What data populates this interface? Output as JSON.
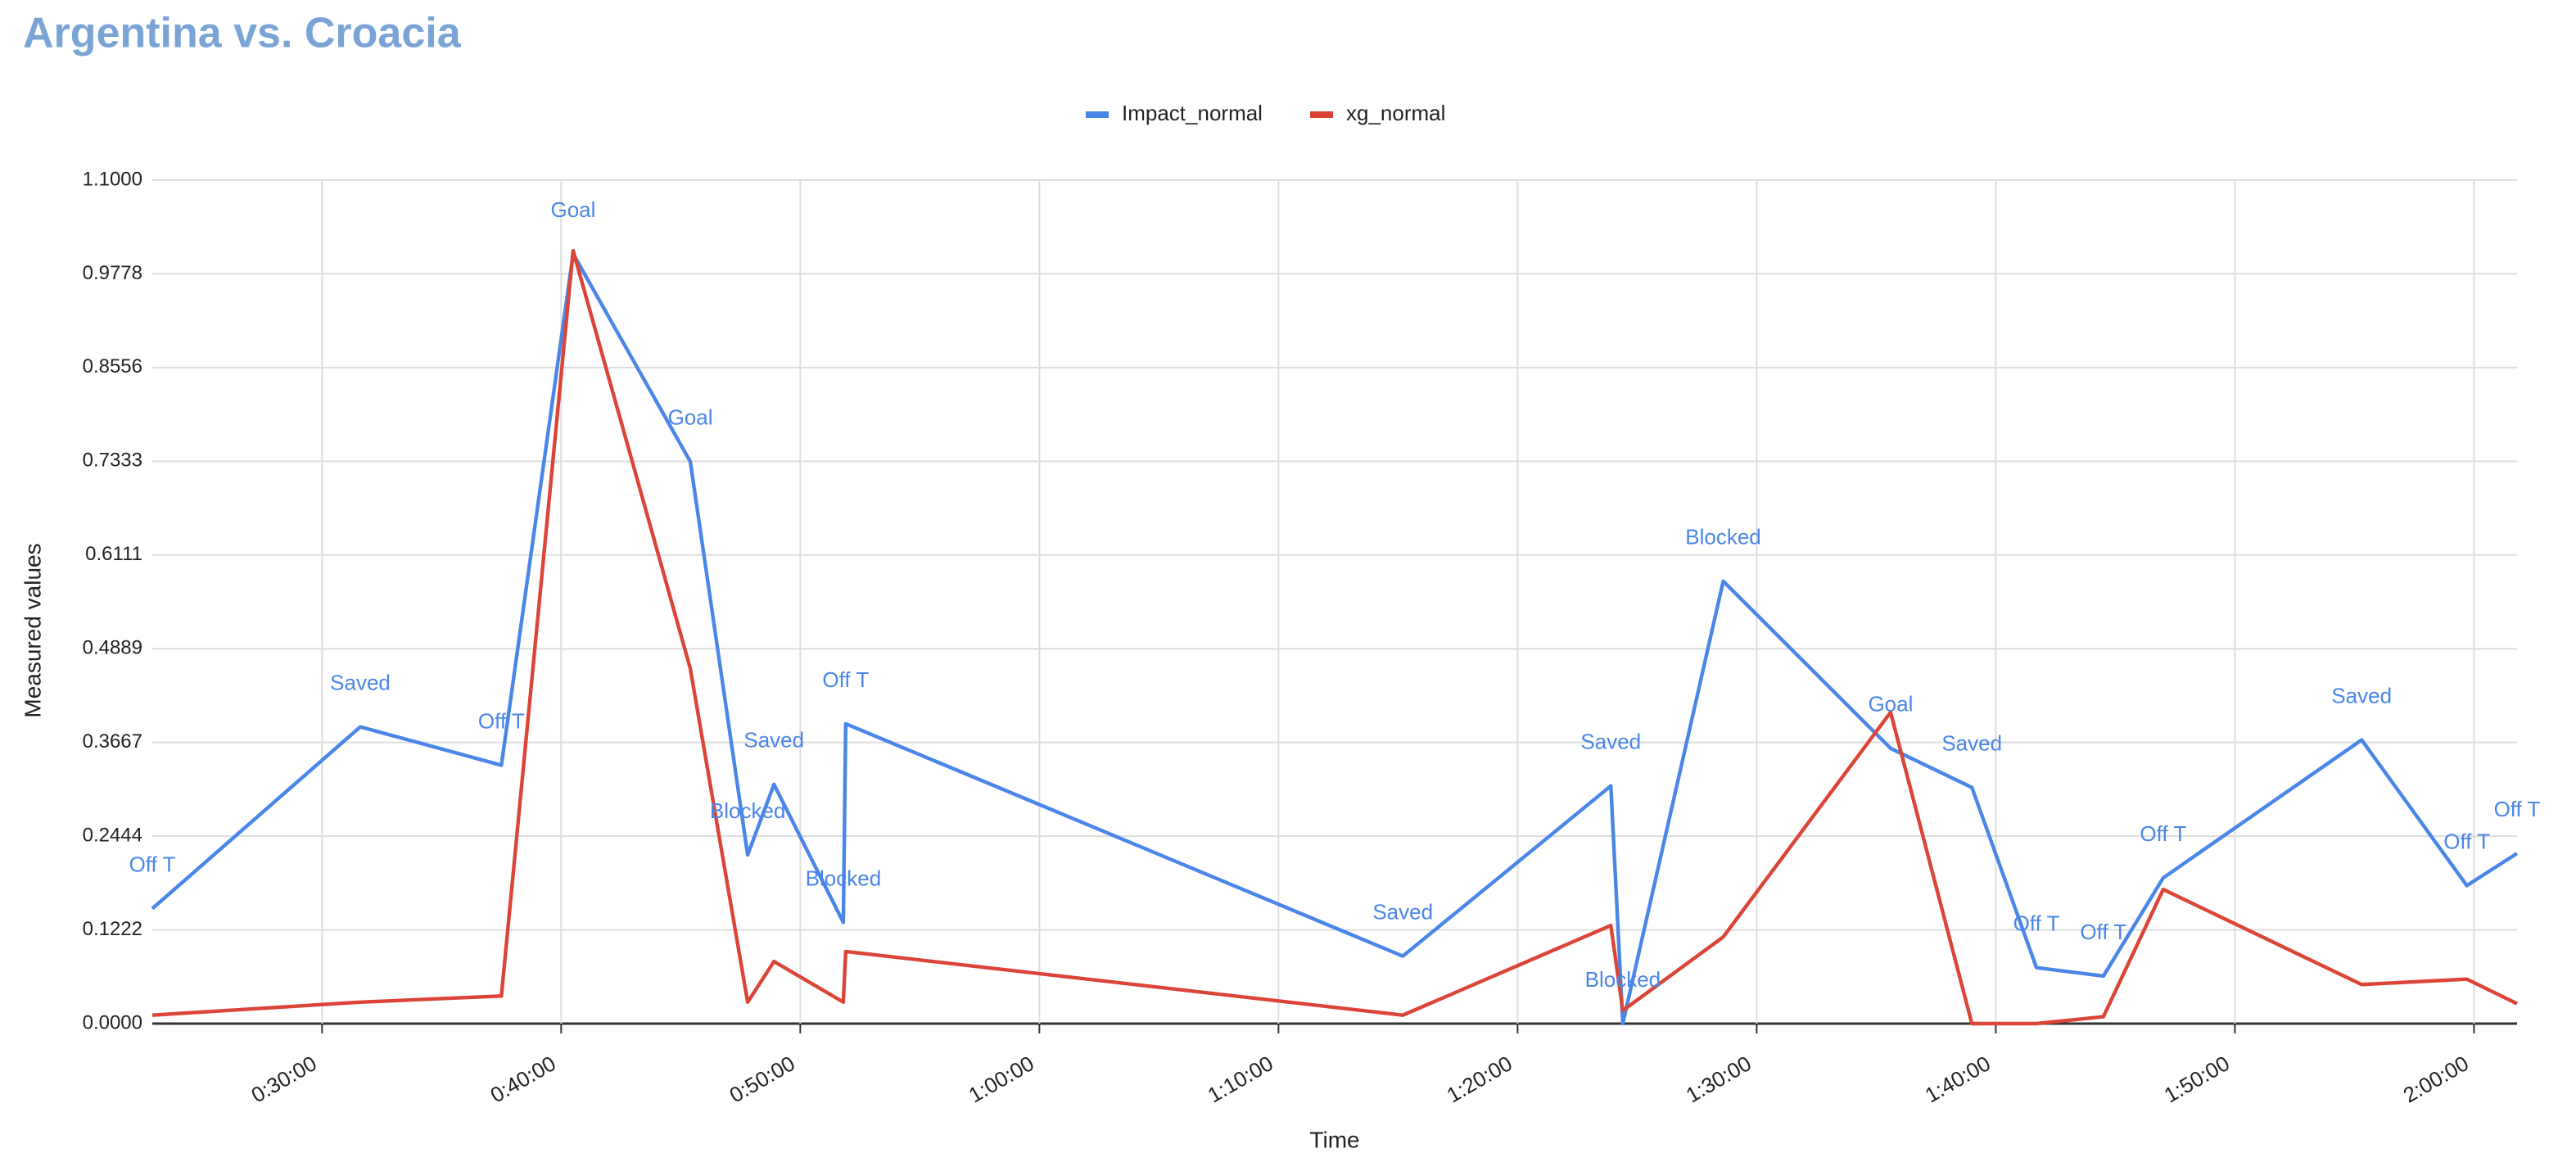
{
  "chart_data": {
    "type": "line",
    "title": "Argentina vs. Croacia",
    "x_label": "Time",
    "y_label": "Measured values",
    "x": [
      22.9,
      31.6,
      37.5,
      40.5,
      45.4,
      47.8,
      48.9,
      51.8,
      51.9,
      75.2,
      83.9,
      84.4,
      88.6,
      95.6,
      99.0,
      101.7,
      104.5,
      107.0,
      115.3,
      119.7,
      121.8
    ],
    "annotations": [
      "Off T",
      "Saved",
      "Off T",
      "Goal",
      "Goal",
      "Blocked",
      "Saved",
      "Blocked",
      "Off T",
      "Saved",
      "Saved",
      "Blocked",
      "Blocked",
      "Goal",
      "Saved",
      "Off T",
      "Off T",
      "Off T",
      "Saved",
      "Off T",
      "Off T"
    ],
    "series": [
      {
        "name": "Impact_normal",
        "color": "#4a86e8",
        "values": [
          0.15,
          0.387,
          0.337,
          1.004,
          0.733,
          0.22,
          0.312,
          0.132,
          0.391,
          0.088,
          0.31,
          0.0,
          0.577,
          0.359,
          0.308,
          0.073,
          0.062,
          0.19,
          0.37,
          0.18,
          0.222
        ]
      },
      {
        "name": "xg_normal",
        "color": "#db4437",
        "values": [
          0.011,
          0.028,
          0.036,
          1.008,
          0.463,
          0.028,
          0.081,
          0.028,
          0.094,
          0.011,
          0.128,
          0.017,
          0.113,
          0.406,
          0.0,
          0.0,
          0.009,
          0.175,
          0.051,
          0.058,
          0.026
        ]
      }
    ],
    "xlim": [
      22.9,
      121.8
    ],
    "xticks": [
      {
        "value": 30,
        "label": "0:30:00"
      },
      {
        "value": 40,
        "label": "0:40:00"
      },
      {
        "value": 50,
        "label": "0:50:00"
      },
      {
        "value": 60,
        "label": "1:00:00"
      },
      {
        "value": 70,
        "label": "1:10:00"
      },
      {
        "value": 80,
        "label": "1:20:00"
      },
      {
        "value": 90,
        "label": "1:30:00"
      },
      {
        "value": 100,
        "label": "1:40:00"
      },
      {
        "value": 110,
        "label": "1:50:00"
      },
      {
        "value": 120,
        "label": "2:00:00"
      }
    ],
    "ylim": [
      0,
      1.1
    ],
    "yticks": [
      {
        "value": 0,
        "label": "0.0000"
      },
      0.1222,
      0.2444,
      0.3667,
      0.4889,
      0.6111,
      0.7333,
      0.8556,
      0.9778,
      {
        "value": 1.1,
        "label": "1.1000"
      }
    ],
    "grid": true,
    "legend": "top"
  }
}
